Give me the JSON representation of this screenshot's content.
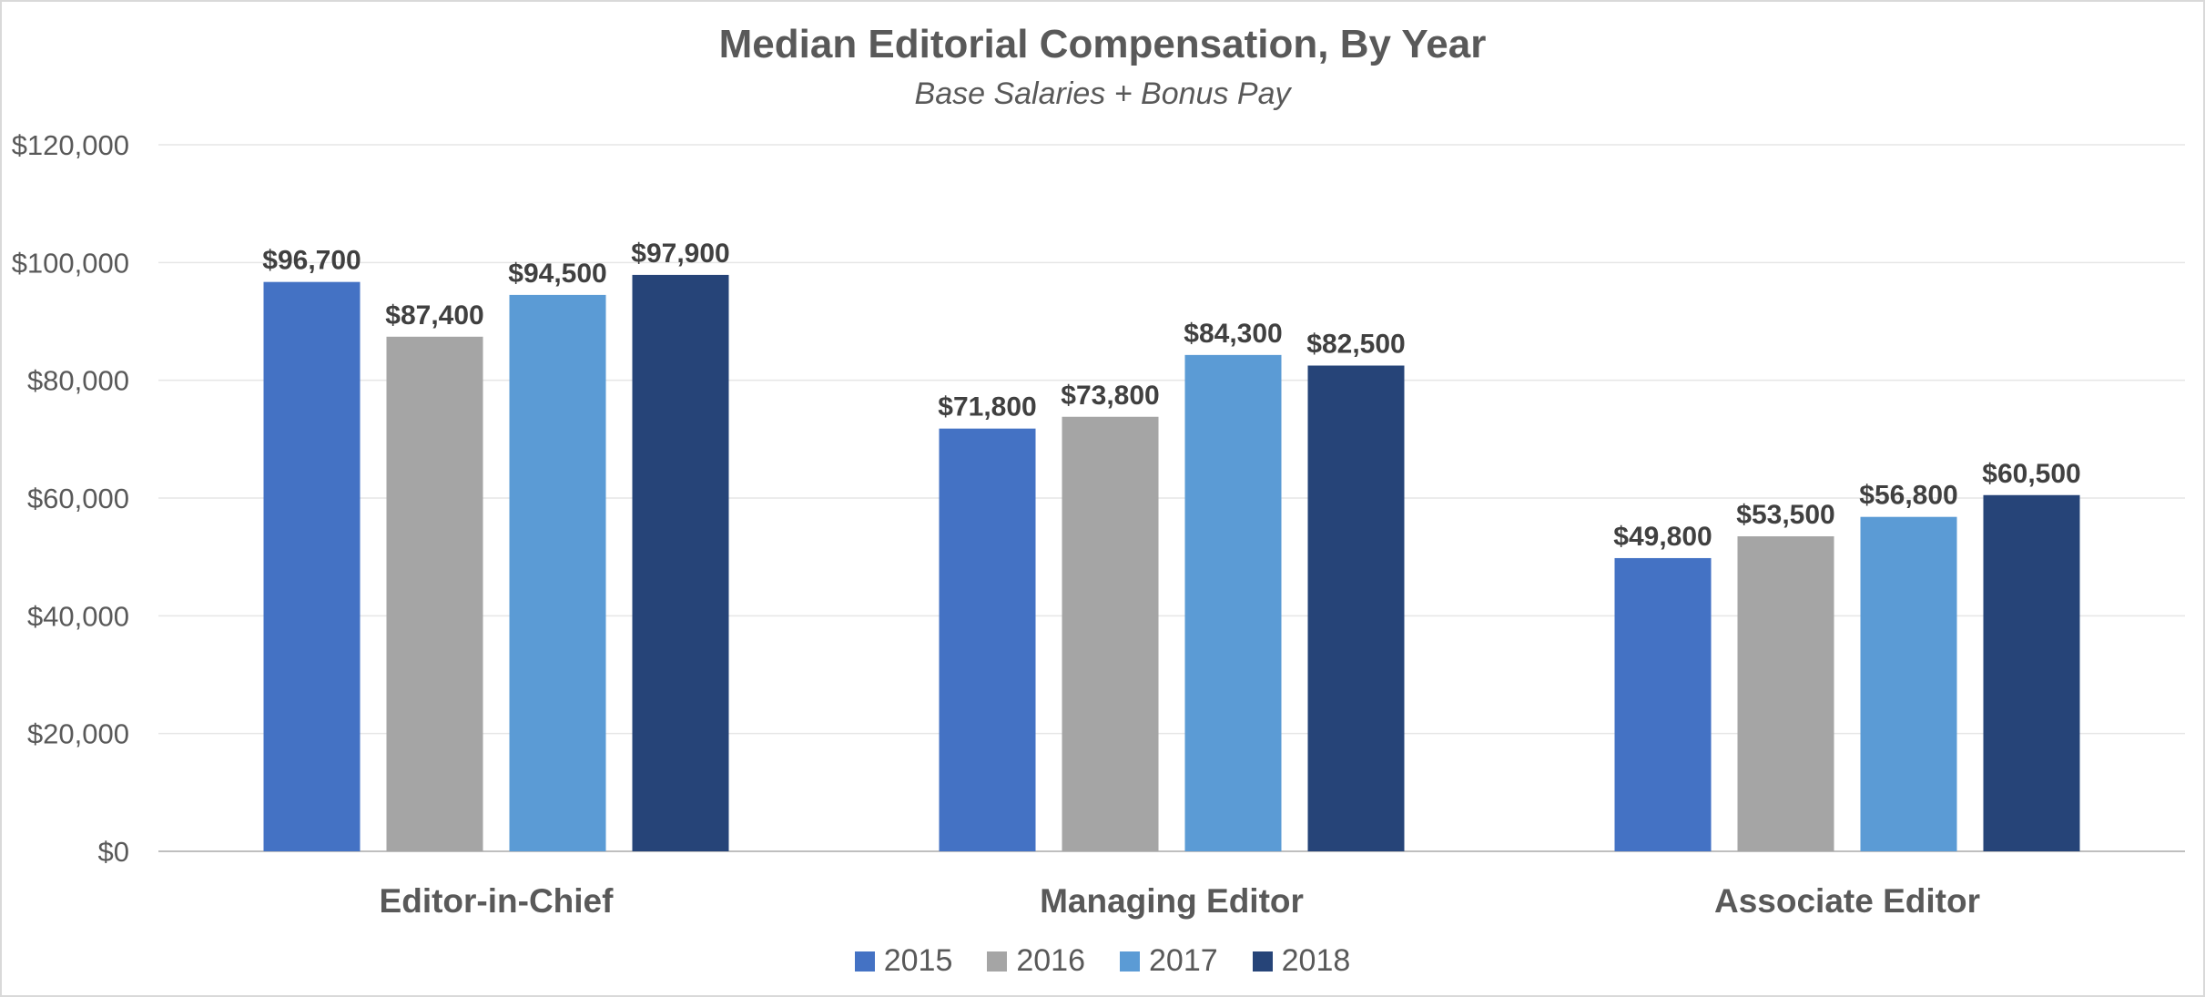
{
  "chart_data": {
    "type": "bar",
    "title": "Median Editorial Compensation, By Year",
    "subtitle": "Base Salaries + Bonus Pay",
    "xlabel": "",
    "ylabel": "",
    "ylim": [
      0,
      120000
    ],
    "yticks": [
      0,
      20000,
      40000,
      60000,
      80000,
      100000,
      120000
    ],
    "ytick_labels": [
      "$0",
      "$20,000",
      "$40,000",
      "$60,000",
      "$80,000",
      "$100,000",
      "$120,000"
    ],
    "categories": [
      "Editor-in-Chief",
      "Managing Editor",
      "Associate Editor"
    ],
    "series": [
      {
        "name": "2015",
        "color": "#4472C4",
        "values": [
          96700,
          71800,
          49800
        ],
        "labels": [
          "$96,700",
          "$71,800",
          "$49,800"
        ]
      },
      {
        "name": "2016",
        "color": "#A5A5A5",
        "values": [
          87400,
          73800,
          53500
        ],
        "labels": [
          "$87,400",
          "$73,800",
          "$53,500"
        ]
      },
      {
        "name": "2017",
        "color": "#5B9BD5",
        "values": [
          94500,
          84300,
          56800
        ],
        "labels": [
          "$94,500",
          "$84,300",
          "$56,800"
        ]
      },
      {
        "name": "2018",
        "color": "#264478",
        "values": [
          97900,
          82500,
          60500
        ],
        "labels": [
          "$97,900",
          "$82,500",
          "$60,500"
        ]
      }
    ],
    "grid": true,
    "legend_position": "bottom"
  }
}
